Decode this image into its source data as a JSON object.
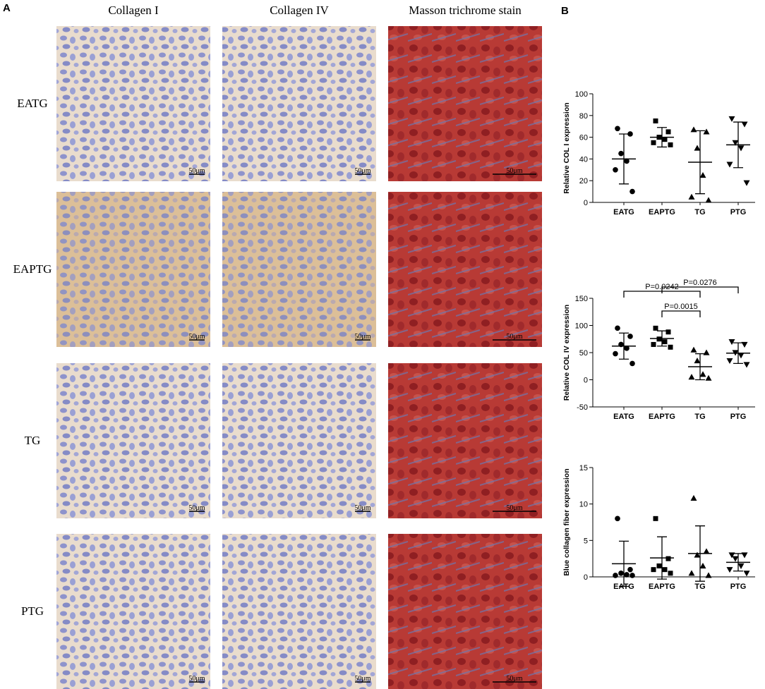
{
  "panel_a": {
    "label": "A",
    "columns": [
      "Collagen I",
      "Collagen IV",
      "Masson trichrome stain"
    ],
    "rows": [
      "EATG",
      "EAPTG",
      "TG",
      "PTG"
    ],
    "scale_bar": "50μm"
  },
  "panel_b": {
    "label": "B"
  },
  "chart_data": [
    {
      "type": "scatter",
      "y_label": "Relative COL I expression",
      "color": "#000000",
      "ylim": [
        0,
        100
      ],
      "yticks": [
        0,
        20,
        40,
        60,
        80,
        100
      ],
      "groups": [
        {
          "name": "EATG",
          "marker": "circle",
          "values": [
            68,
            63,
            45,
            38,
            30,
            10
          ],
          "mean": 40,
          "sd": 23
        },
        {
          "name": "EAPTG",
          "marker": "square",
          "values": [
            75,
            65,
            60,
            58,
            55,
            53
          ],
          "mean": 60,
          "sd": 9
        },
        {
          "name": "TG",
          "marker": "triangle",
          "values": [
            67,
            65,
            50,
            25,
            5,
            2
          ],
          "mean": 37,
          "sd": 29
        },
        {
          "name": "PTG",
          "marker": "triangle-down",
          "values": [
            77,
            72,
            55,
            50,
            35,
            18
          ],
          "mean": 53,
          "sd": 21
        }
      ]
    },
    {
      "type": "scatter",
      "y_label": "Relative COL IV expression",
      "color": "#000000",
      "ylim": [
        -50,
        150
      ],
      "yticks": [
        -50,
        0,
        50,
        100,
        150
      ],
      "groups": [
        {
          "name": "EATG",
          "marker": "circle",
          "values": [
            95,
            80,
            65,
            58,
            48,
            30
          ],
          "mean": 62,
          "sd": 24
        },
        {
          "name": "EAPTG",
          "marker": "square",
          "values": [
            95,
            88,
            75,
            70,
            65,
            60
          ],
          "mean": 76,
          "sd": 14
        },
        {
          "name": "TG",
          "marker": "triangle",
          "values": [
            55,
            50,
            35,
            10,
            5,
            3
          ],
          "mean": 24,
          "sd": 24
        },
        {
          "name": "PTG",
          "marker": "triangle-down",
          "values": [
            70,
            65,
            50,
            45,
            35,
            28
          ],
          "mean": 49,
          "sd": 19
        }
      ],
      "comparisons": [
        {
          "from": "EAPTG",
          "to": "PTG",
          "label": "P=0.0276"
        },
        {
          "from": "EATG",
          "to": "TG",
          "label": "P=0.0242"
        },
        {
          "from": "EAPTG",
          "to": "TG",
          "label": "P=0.0015"
        }
      ]
    },
    {
      "type": "scatter",
      "y_label": "Blue collagen fiber expression",
      "color": "#000000",
      "ylim": [
        0,
        15
      ],
      "yticks": [
        0,
        5,
        10,
        15
      ],
      "groups": [
        {
          "name": "EATG",
          "marker": "circle",
          "values": [
            8,
            1,
            0.5,
            0.3,
            0.2,
            0.2
          ],
          "mean": 1.8,
          "sd": 3.1
        },
        {
          "name": "EAPTG",
          "marker": "square",
          "values": [
            8,
            2.5,
            1.5,
            1,
            1,
            0.5
          ],
          "mean": 2.6,
          "sd": 2.9
        },
        {
          "name": "TG",
          "marker": "triangle",
          "values": [
            10.8,
            3.5,
            3,
            1.5,
            0.5,
            0.2
          ],
          "mean": 3.2,
          "sd": 3.8
        },
        {
          "name": "PTG",
          "marker": "triangle-down",
          "values": [
            3,
            3,
            2.5,
            1.5,
            1,
            0.5
          ],
          "mean": 2,
          "sd": 1.2
        }
      ]
    }
  ]
}
